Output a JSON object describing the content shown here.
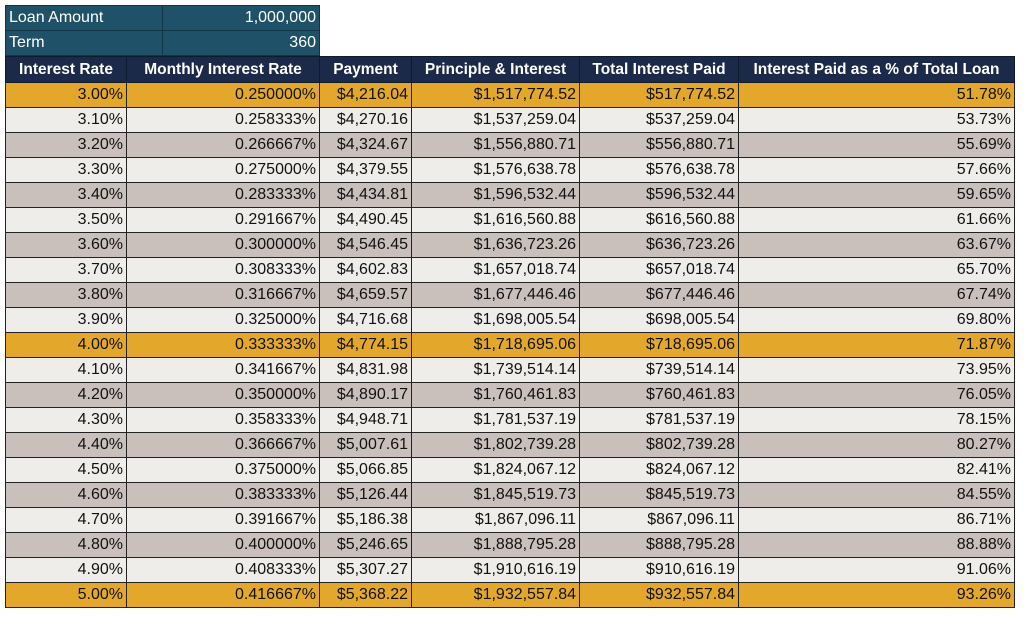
{
  "summary": {
    "loan_amount_label": "Loan Amount",
    "loan_amount_value": "1,000,000",
    "term_label": "Term",
    "term_value": "360"
  },
  "colors": {
    "summary_bg": "#1f5268",
    "header_bg": "#1b2a48",
    "row_light": "#efedea",
    "row_gray": "#c9c0bb",
    "row_highlight": "#e3a72c"
  },
  "table": {
    "headers": [
      "Interest Rate",
      "Monthly Interest Rate",
      "Payment",
      "Principle & Interest",
      "Total Interest Paid",
      "Interest Paid as a % of Total Loan"
    ],
    "rows": [
      {
        "style": "gold",
        "cells": [
          "3.00%",
          "0.250000%",
          "$4,216.04",
          "$1,517,774.52",
          "$517,774.52",
          "51.78%"
        ]
      },
      {
        "style": "light",
        "cells": [
          "3.10%",
          "0.258333%",
          "$4,270.16",
          "$1,537,259.04",
          "$537,259.04",
          "53.73%"
        ]
      },
      {
        "style": "gray",
        "cells": [
          "3.20%",
          "0.266667%",
          "$4,324.67",
          "$1,556,880.71",
          "$556,880.71",
          "55.69%"
        ]
      },
      {
        "style": "light",
        "cells": [
          "3.30%",
          "0.275000%",
          "$4,379.55",
          "$1,576,638.78",
          "$576,638.78",
          "57.66%"
        ]
      },
      {
        "style": "gray",
        "cells": [
          "3.40%",
          "0.283333%",
          "$4,434.81",
          "$1,596,532.44",
          "$596,532.44",
          "59.65%"
        ]
      },
      {
        "style": "light",
        "cells": [
          "3.50%",
          "0.291667%",
          "$4,490.45",
          "$1,616,560.88",
          "$616,560.88",
          "61.66%"
        ]
      },
      {
        "style": "gray",
        "cells": [
          "3.60%",
          "0.300000%",
          "$4,546.45",
          "$1,636,723.26",
          "$636,723.26",
          "63.67%"
        ]
      },
      {
        "style": "light",
        "cells": [
          "3.70%",
          "0.308333%",
          "$4,602.83",
          "$1,657,018.74",
          "$657,018.74",
          "65.70%"
        ]
      },
      {
        "style": "gray",
        "cells": [
          "3.80%",
          "0.316667%",
          "$4,659.57",
          "$1,677,446.46",
          "$677,446.46",
          "67.74%"
        ]
      },
      {
        "style": "light",
        "cells": [
          "3.90%",
          "0.325000%",
          "$4,716.68",
          "$1,698,005.54",
          "$698,005.54",
          "69.80%"
        ]
      },
      {
        "style": "gold",
        "cells": [
          "4.00%",
          "0.333333%",
          "$4,774.15",
          "$1,718,695.06",
          "$718,695.06",
          "71.87%"
        ]
      },
      {
        "style": "light",
        "cells": [
          "4.10%",
          "0.341667%",
          "$4,831.98",
          "$1,739,514.14",
          "$739,514.14",
          "73.95%"
        ]
      },
      {
        "style": "gray",
        "cells": [
          "4.20%",
          "0.350000%",
          "$4,890.17",
          "$1,760,461.83",
          "$760,461.83",
          "76.05%"
        ]
      },
      {
        "style": "light",
        "cells": [
          "4.30%",
          "0.358333%",
          "$4,948.71",
          "$1,781,537.19",
          "$781,537.19",
          "78.15%"
        ]
      },
      {
        "style": "gray",
        "cells": [
          "4.40%",
          "0.366667%",
          "$5,007.61",
          "$1,802,739.28",
          "$802,739.28",
          "80.27%"
        ]
      },
      {
        "style": "light",
        "cells": [
          "4.50%",
          "0.375000%",
          "$5,066.85",
          "$1,824,067.12",
          "$824,067.12",
          "82.41%"
        ]
      },
      {
        "style": "gray",
        "cells": [
          "4.60%",
          "0.383333%",
          "$5,126.44",
          "$1,845,519.73",
          "$845,519.73",
          "84.55%"
        ]
      },
      {
        "style": "light",
        "cells": [
          "4.70%",
          "0.391667%",
          "$5,186.38",
          "$1,867,096.11",
          "$867,096.11",
          "86.71%"
        ]
      },
      {
        "style": "gray",
        "cells": [
          "4.80%",
          "0.400000%",
          "$5,246.65",
          "$1,888,795.28",
          "$888,795.28",
          "88.88%"
        ]
      },
      {
        "style": "light",
        "cells": [
          "4.90%",
          "0.408333%",
          "$5,307.27",
          "$1,910,616.19",
          "$910,616.19",
          "91.06%"
        ]
      },
      {
        "style": "gold",
        "cells": [
          "5.00%",
          "0.416667%",
          "$5,368.22",
          "$1,932,557.84",
          "$932,557.84",
          "93.26%"
        ]
      }
    ]
  }
}
